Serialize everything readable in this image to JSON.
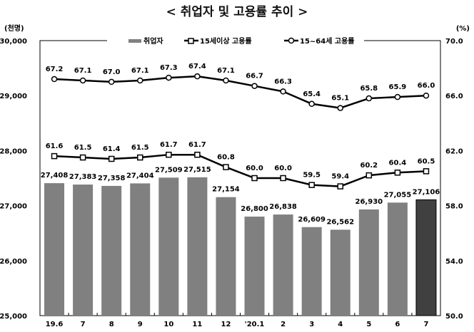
{
  "chart_data": {
    "type": "bar+line",
    "title": "< 취업자 및 고용률 추이 >",
    "left_unit": "(천명)",
    "right_unit": "(%)",
    "categories": [
      "19.6",
      "7",
      "8",
      "9",
      "10",
      "11",
      "12",
      "'20.1",
      "2",
      "3",
      "4",
      "5",
      "6",
      "7"
    ],
    "left_ylim": [
      25000,
      30000
    ],
    "left_ticks": [
      "25,000",
      "26,000",
      "27,000",
      "28,000",
      "29,000",
      "30,000"
    ],
    "right_ylim": [
      50.0,
      70.0
    ],
    "right_ticks": [
      "50.0",
      "54.0",
      "58.0",
      "62.0",
      "66.0",
      "70.0"
    ],
    "grid": false,
    "legend_placement": "top",
    "series": [
      {
        "name": "취업자",
        "kind": "bar",
        "axis": "left",
        "color": "#808080",
        "highlight_last_color": "#404040",
        "values": [
          27408,
          27383,
          27358,
          27404,
          27509,
          27515,
          27154,
          26800,
          26838,
          26609,
          26562,
          26930,
          27055,
          27106
        ],
        "labels": [
          "27,408",
          "27,383",
          "27,358",
          "27,404",
          "27,509",
          "27,515",
          "27,154",
          "26,800",
          "26,838",
          "26,609",
          "26,562",
          "26,930",
          "27,055",
          "27,106"
        ]
      },
      {
        "name": "15세이상 고용률",
        "kind": "line",
        "marker": "square",
        "axis": "right",
        "color": "#000000",
        "values": [
          61.6,
          61.5,
          61.4,
          61.5,
          61.7,
          61.7,
          60.8,
          60.0,
          60.0,
          59.5,
          59.4,
          60.2,
          60.4,
          60.5
        ],
        "labels": [
          "61.6",
          "61.5",
          "61.4",
          "61.5",
          "61.7",
          "61.7",
          "60.8",
          "60.0",
          "60.0",
          "59.5",
          "59.4",
          "60.2",
          "60.4",
          "60.5"
        ]
      },
      {
        "name": "15~64세 고용률",
        "kind": "line",
        "marker": "circle",
        "axis": "right",
        "color": "#000000",
        "values": [
          67.2,
          67.1,
          67.0,
          67.1,
          67.3,
          67.4,
          67.1,
          66.7,
          66.3,
          65.4,
          65.1,
          65.8,
          65.9,
          66.0
        ],
        "labels": [
          "67.2",
          "67.1",
          "67.0",
          "67.1",
          "67.3",
          "67.4",
          "67.1",
          "66.7",
          "66.3",
          "65.4",
          "65.1",
          "65.8",
          "65.9",
          "66.0"
        ]
      }
    ]
  }
}
